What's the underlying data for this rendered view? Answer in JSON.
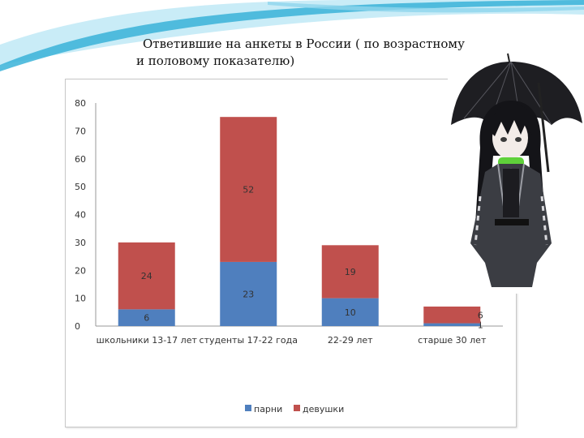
{
  "slide": {
    "title_line1": "Ответившие на анкеты в России ( по возрастному",
    "title_line2": "и половому показателю)"
  },
  "colors": {
    "boys": "#4f7fbe",
    "girls": "#c0504d",
    "wave_light": "#c9ecf7",
    "wave_dark": "#39b3d8"
  },
  "illustration": "anime girl holding a black umbrella",
  "chart_data": {
    "type": "bar",
    "stacked": true,
    "categories": [
      "школьники 13-17 лет",
      "студенты 17-22 года",
      "22-29 лет",
      "старше 30 лет"
    ],
    "series": [
      {
        "name": "парни",
        "values": [
          6,
          23,
          10,
          1
        ]
      },
      {
        "name": "девушки",
        "values": [
          24,
          52,
          19,
          6
        ]
      }
    ],
    "ylim": [
      0,
      80
    ],
    "yticks": [
      0,
      10,
      20,
      30,
      40,
      50,
      60,
      70,
      80
    ],
    "data_labels": true,
    "legend_position": "bottom",
    "grid": false
  }
}
